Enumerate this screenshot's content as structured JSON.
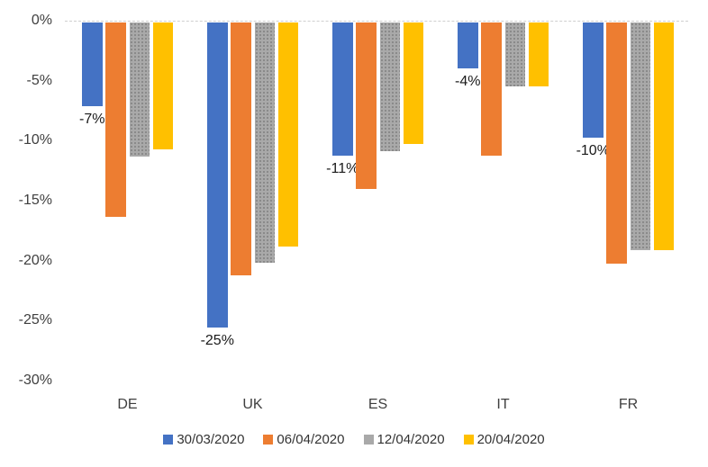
{
  "chart_data": {
    "type": "bar",
    "title": "",
    "xlabel": "",
    "ylabel": "",
    "categories": [
      "DE",
      "UK",
      "ES",
      "IT",
      "FR"
    ],
    "series": [
      {
        "name": "30/03/2020",
        "color": "#4472C4",
        "pattern": "solid",
        "values": [
          -7,
          -25.4,
          -11.1,
          -3.8,
          -9.6
        ],
        "data_labels": [
          "-7%",
          "-25%",
          "-11%",
          "-4%",
          "-10%"
        ]
      },
      {
        "name": "06/04/2020",
        "color": "#ED7D31",
        "pattern": "solid",
        "values": [
          -16.2,
          -21.1,
          -13.9,
          -11.1,
          -20.1
        ],
        "data_labels": null
      },
      {
        "name": "12/04/2020",
        "color": "#A9A9A9",
        "pattern": "dotted",
        "values": [
          -11.2,
          -20,
          -10.7,
          -5.3,
          -19
        ],
        "data_labels": null
      },
      {
        "name": "20/04/2020",
        "color": "#FFC000",
        "pattern": "solid",
        "values": [
          -10.6,
          -18.7,
          -10.1,
          -5.3,
          -19
        ],
        "data_labels": null
      }
    ],
    "y_axis": {
      "min": -30,
      "max": 0,
      "tick_step": 5,
      "tick_labels": [
        "0%",
        "-5%",
        "-10%",
        "-15%",
        "-20%",
        "-25%",
        "-30%"
      ],
      "format": "percent"
    },
    "legend": {
      "position": "bottom",
      "entries": [
        "30/03/2020",
        "06/04/2020",
        "12/04/2020",
        "20/04/2020"
      ]
    },
    "grid": "none",
    "background": "#FFFFFF"
  }
}
